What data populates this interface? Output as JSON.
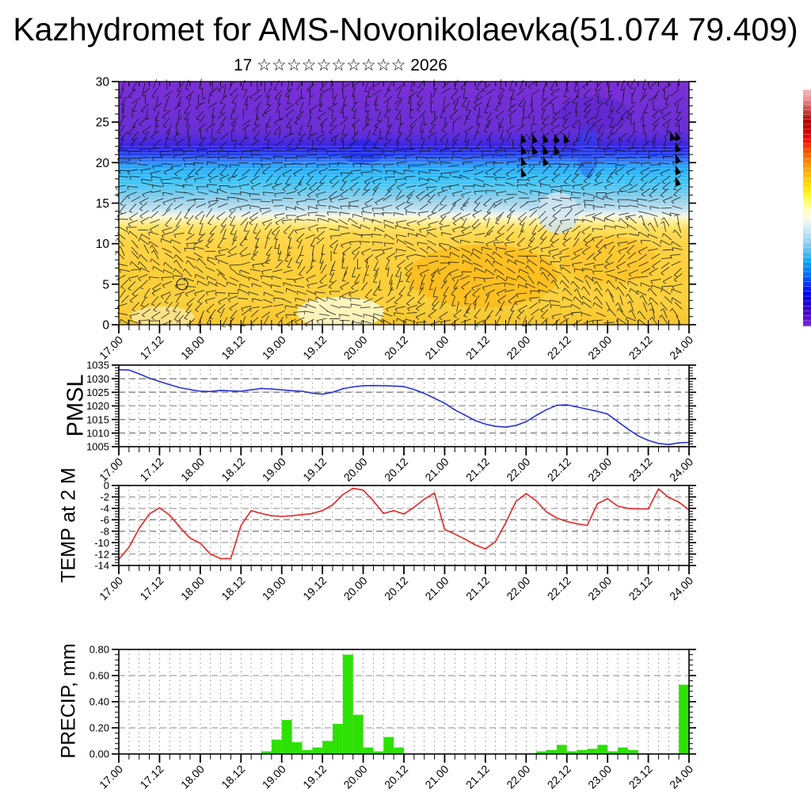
{
  "header": {
    "title": "Kazhydromet for AMS-Novonikolaevka(51.074 79.409)",
    "subtitle": "17 ☆☆☆☆☆☆☆☆☆☆ 2026"
  },
  "time_axis": {
    "major_labels": [
      "17.00",
      "17.12",
      "18.00",
      "18.12",
      "19.00",
      "19.12",
      "20.00",
      "20.12",
      "21.00",
      "21.12",
      "22.00",
      "22.12",
      "23.00",
      "23.12",
      "24.00"
    ],
    "major_step_hours": 12,
    "minor_step_hours": 3,
    "total_hours": 168
  },
  "chart_data": [
    {
      "id": "wind_profile",
      "type": "heatmap",
      "label": "",
      "ylim": [
        0,
        30
      ],
      "ytick_values": [
        0,
        5,
        10,
        15,
        20,
        25,
        30
      ],
      "ytick_labels": [
        "0",
        "5",
        "10",
        "15",
        "20",
        "25",
        "30"
      ],
      "overlay": "wind barbs with pennant flags",
      "color_bands_by_level": [
        {
          "level": 30,
          "color": "#7b2fd6"
        },
        {
          "level": 24,
          "color": "#6b2fd6"
        },
        {
          "level": 22.6,
          "color": "#4b2ae0"
        },
        {
          "level": 21.8,
          "color": "#2a20e6"
        },
        {
          "level": 21.0,
          "color": "#1e3cf0"
        },
        {
          "level": 20.2,
          "color": "#2e7af7"
        },
        {
          "level": 19.4,
          "color": "#21a7fc"
        },
        {
          "level": 18.2,
          "color": "#2fbdf9"
        },
        {
          "level": 17.0,
          "color": "#4cc6f2"
        },
        {
          "level": 16.0,
          "color": "#79c9ea"
        },
        {
          "level": 15.0,
          "color": "#a3d4ea"
        },
        {
          "level": 14.2,
          "color": "#c2e2f0"
        },
        {
          "level": 13.7,
          "color": "#e6f1ef"
        },
        {
          "level": 13.3,
          "color": "#fbf8d2"
        },
        {
          "level": 12.7,
          "color": "#ffef9a"
        },
        {
          "level": 12.0,
          "color": "#ffe266"
        },
        {
          "level": 11.0,
          "color": "#ffd84e"
        },
        {
          "level": 9.5,
          "color": "#ffd243"
        },
        {
          "level": 6.0,
          "color": "#fccf38"
        },
        {
          "level": 3.0,
          "color": "#fbd13e"
        },
        {
          "level": 0,
          "color": "#f7c62e"
        }
      ],
      "pennants": [
        [
          118.5,
          23.6
        ],
        [
          118.5,
          22.2
        ],
        [
          118.5,
          20.8
        ],
        [
          118.5,
          19.4
        ],
        [
          121.8,
          23.6
        ],
        [
          121.8,
          22.2
        ],
        [
          125.0,
          23.6
        ],
        [
          125.0,
          22.2
        ],
        [
          125.0,
          20.8
        ],
        [
          128.3,
          23.6
        ],
        [
          128.3,
          22.2
        ],
        [
          131.1,
          23.6
        ],
        [
          162.4,
          23.9
        ],
        [
          164.0,
          23.9
        ],
        [
          164.0,
          22.5
        ],
        [
          164.0,
          21.1
        ],
        [
          164.0,
          19.7
        ],
        [
          164.0,
          18.3
        ]
      ],
      "station_circle": {
        "t_hours": 18.7,
        "level": 5
      }
    },
    {
      "id": "pmsl",
      "type": "line",
      "label": "PMSL",
      "color": "#2431d6",
      "ylim": [
        1005,
        1035
      ],
      "ytick_values": [
        1005,
        1010,
        1015,
        1020,
        1025,
        1030,
        1035
      ],
      "ytick_labels": [
        "1005",
        "1010",
        "1015",
        "1020",
        "1025",
        "1030",
        "1035"
      ],
      "grid_values": [
        1010,
        1015,
        1020,
        1025,
        1030
      ],
      "minor_tick_step": 1,
      "step_hours": 3,
      "values": [
        1033.3,
        1033.2,
        1031.8,
        1030.2,
        1029.0,
        1027.8,
        1026.7,
        1026.0,
        1025.4,
        1025.3,
        1025.7,
        1025.5,
        1025.4,
        1025.9,
        1026.4,
        1026.2,
        1025.9,
        1025.6,
        1025.4,
        1024.7,
        1024.3,
        1025.0,
        1026.3,
        1027.0,
        1027.4,
        1027.5,
        1027.4,
        1027.3,
        1027.1,
        1026.0,
        1024.6,
        1022.8,
        1021.0,
        1018.5,
        1016.6,
        1014.6,
        1013.3,
        1012.5,
        1012.2,
        1012.8,
        1014.2,
        1016.5,
        1018.6,
        1020.2,
        1020.4,
        1019.6,
        1018.8,
        1018.0,
        1017.0,
        1014.2,
        1011.5,
        1009.0,
        1007.3,
        1006.2,
        1005.8,
        1006.4,
        1006.6
      ]
    },
    {
      "id": "temp2m",
      "type": "line",
      "label": "TEMP at 2 M",
      "color": "#e62424",
      "ylim": [
        -14,
        0
      ],
      "ytick_values": [
        0,
        -2,
        -4,
        -6,
        -8,
        -10,
        -12,
        -14
      ],
      "ytick_labels": [
        "0",
        "-2",
        "-4",
        "-6",
        "-8",
        "-10",
        "-12",
        "-14"
      ],
      "grid_values": [
        -2,
        -4,
        -6,
        -8,
        -10,
        -12
      ],
      "minor_tick_step": 0.5,
      "step_hours": 3,
      "values": [
        -12.9,
        -10.8,
        -7.5,
        -5.0,
        -3.9,
        -5.2,
        -7.3,
        -9.2,
        -10.1,
        -12.0,
        -12.8,
        -12.8,
        -7.0,
        -4.4,
        -4.9,
        -5.3,
        -5.4,
        -5.3,
        -5.1,
        -4.9,
        -4.4,
        -3.4,
        -1.6,
        -0.5,
        -0.8,
        -2.7,
        -4.9,
        -4.4,
        -5.0,
        -3.8,
        -2.4,
        -1.3,
        -7.7,
        -8.5,
        -9.4,
        -10.4,
        -11.1,
        -9.8,
        -6.5,
        -2.8,
        -1.4,
        -2.7,
        -4.6,
        -5.7,
        -6.3,
        -6.7,
        -7.0,
        -3.2,
        -2.3,
        -3.6,
        -4.0,
        -4.1,
        -4.1,
        -0.6,
        -2.1,
        -2.9,
        -4.3
      ]
    },
    {
      "id": "precip",
      "type": "bar",
      "label": "PRECIP, mm",
      "color": "#2ee104",
      "ylim": [
        0,
        0.8
      ],
      "ytick_values": [
        0,
        0.2,
        0.4,
        0.6,
        0.8
      ],
      "ytick_labels": [
        "0.00",
        "0.20",
        "0.40",
        "0.60",
        "0.80"
      ],
      "grid_values": [
        0.2,
        0.4,
        0.6
      ],
      "minor_tick_step": 0.04,
      "step_hours": 3,
      "values": [
        0,
        0,
        0,
        0,
        0,
        0,
        0,
        0,
        0,
        0,
        0,
        0,
        0,
        0,
        0.02,
        0.11,
        0.26,
        0.09,
        0.03,
        0.05,
        0.1,
        0.23,
        0.76,
        0.3,
        0.05,
        0.02,
        0.13,
        0.05,
        0,
        0,
        0,
        0,
        0,
        0,
        0,
        0,
        0,
        0,
        0,
        0,
        0,
        0.02,
        0.03,
        0.07,
        0.02,
        0.03,
        0.04,
        0.07,
        0.02,
        0.05,
        0.03,
        0,
        0,
        0,
        0,
        0.53
      ]
    }
  ],
  "colorbar": {
    "colors_top_to_bottom": [
      "#f7b8b8",
      "#ee9c9c",
      "#d96666",
      "#c23333",
      "#b30000",
      "#cc0000",
      "#ee0000",
      "#ff2a00",
      "#ff5500",
      "#ff8000",
      "#ffa200",
      "#ffc100",
      "#ffdc00",
      "#fff200",
      "#ffff55",
      "#ffffaa",
      "#fffdd8",
      "#e4f2f7",
      "#c4e6f5",
      "#a0d8f2",
      "#72c8f0",
      "#3cb4f0",
      "#00a2ff",
      "#0080ff",
      "#0055ff",
      "#0022ff",
      "#0000f2",
      "#1a00d8",
      "#3c00cc",
      "#5c10d2",
      "#7a22e0"
    ]
  }
}
